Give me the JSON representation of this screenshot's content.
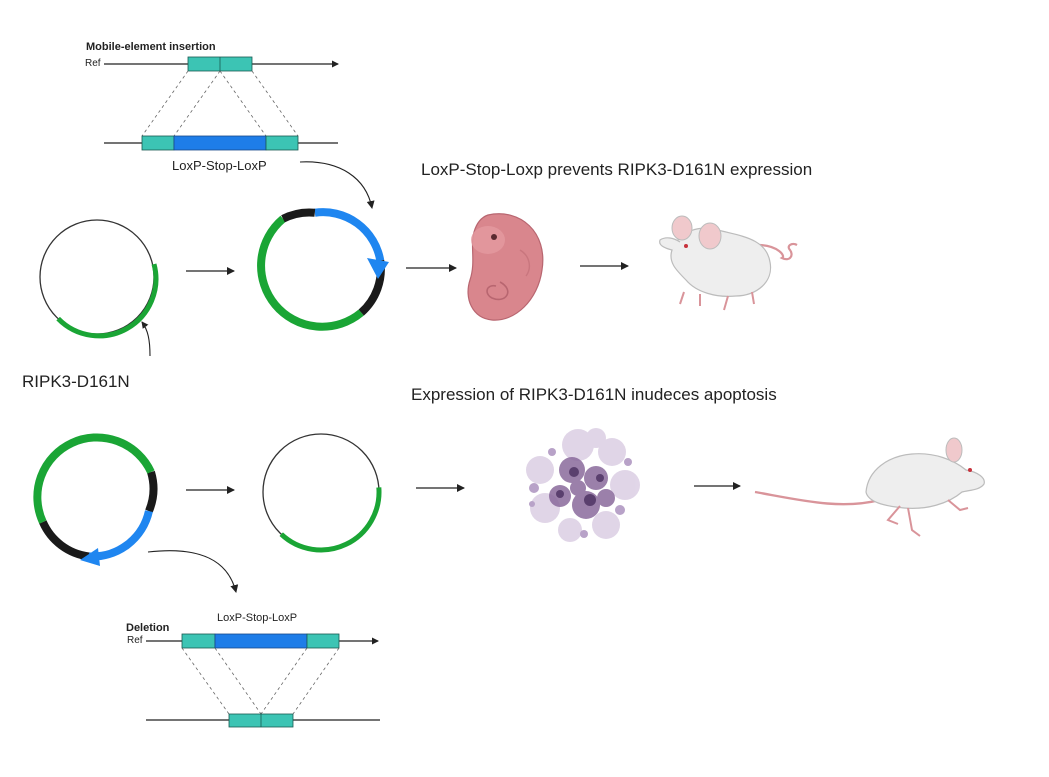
{
  "top_panel": {
    "insertion_title": "Mobile-element insertion",
    "ref_label": "Ref",
    "cassette_label": "LoxP-Stop-LoxP",
    "caption": "LoxP-Stop-Loxp prevents RIPK3-D161N expression",
    "gene_label": "RIPK3-D161N"
  },
  "bottom_panel": {
    "caption": "Expression of RIPK3-D161N inudeces apoptosis",
    "deletion_title": "Deletion",
    "ref_label": "Ref",
    "cassette_label": "LoxP-Stop-LoxP"
  },
  "colors": {
    "gene": "#1aa535",
    "cassette": "#1f86f0",
    "backbone": "#1a1a1a",
    "loxp": "#3cc4b4",
    "cassette_bar": "#1e7de8",
    "embryo": "#d9868d",
    "apoptotic_cells": "#8a6a9c",
    "mouse_body": "#eeeeee",
    "mouse_tail": "#d9949a"
  },
  "icons": [
    "plasmid-empty-icon",
    "plasmid-with-cassette-icon",
    "embryo-icon",
    "mouse-standing-icon",
    "apoptotic-cells-icon",
    "mouse-running-icon"
  ]
}
